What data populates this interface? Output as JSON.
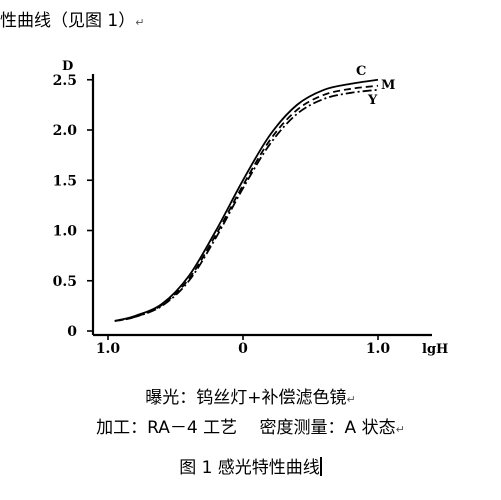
{
  "page": {
    "heading": "性曲线（见图 1）",
    "para_mark": "↵",
    "caption_exposure": "曝光：钨丝灯+补偿滤色镜",
    "caption_processing": "加工：RA－4 工艺　 密度测量：A 状态",
    "figure_caption": "图 1  感光特性曲线"
  },
  "chart_data": {
    "type": "line",
    "title": "",
    "xlabel": "lgH",
    "ylabel": "D",
    "xlim": [
      -1.1,
      1.3
    ],
    "ylim": [
      0,
      2.6
    ],
    "x_ticks": [
      "1.0",
      "0",
      "1.0"
    ],
    "y_ticks": [
      "0",
      "0.5",
      "1.0",
      "1.5",
      "2.0",
      "2.5"
    ],
    "grid": false,
    "series": [
      {
        "name": "C",
        "style": "solid",
        "color": "#000000",
        "x": [
          -0.95,
          -0.8,
          -0.6,
          -0.4,
          -0.2,
          0.0,
          0.2,
          0.4,
          0.6,
          0.8,
          1.0
        ],
        "y": [
          0.1,
          0.15,
          0.27,
          0.55,
          1.0,
          1.5,
          1.95,
          2.25,
          2.4,
          2.46,
          2.5
        ]
      },
      {
        "name": "M",
        "style": "dashed",
        "color": "#000000",
        "x": [
          -0.95,
          -0.8,
          -0.6,
          -0.4,
          -0.2,
          0.0,
          0.2,
          0.4,
          0.6,
          0.8,
          1.0
        ],
        "y": [
          0.1,
          0.14,
          0.26,
          0.52,
          0.96,
          1.45,
          1.9,
          2.2,
          2.35,
          2.41,
          2.44
        ]
      },
      {
        "name": "Y",
        "style": "dashdot",
        "color": "#000000",
        "x": [
          -0.95,
          -0.8,
          -0.6,
          -0.4,
          -0.2,
          0.0,
          0.2,
          0.4,
          0.6,
          0.8,
          1.0
        ],
        "y": [
          0.1,
          0.14,
          0.25,
          0.5,
          0.93,
          1.42,
          1.86,
          2.16,
          2.31,
          2.37,
          2.4
        ]
      }
    ]
  }
}
